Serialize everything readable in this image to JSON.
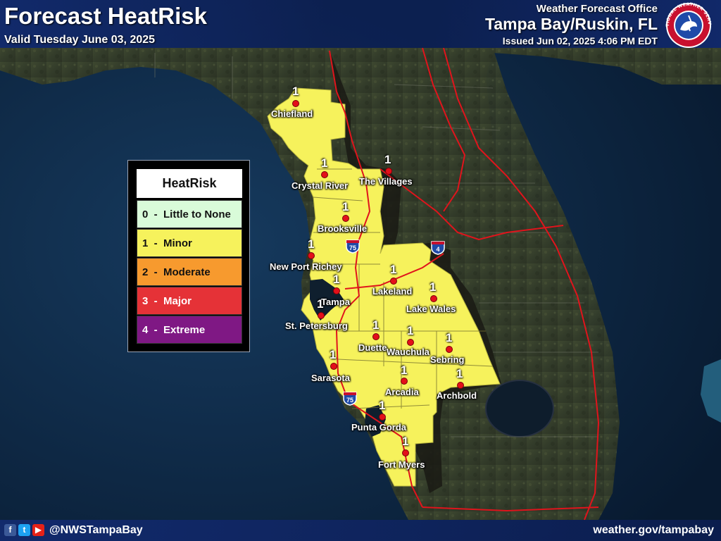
{
  "header": {
    "title": "Forecast HeatRisk",
    "valid": "Valid Tuesday June 03, 2025",
    "office_label": "Weather Forecast Office",
    "office_name": "Tampa Bay/Ruskin, FL",
    "issued": "Issued Jun 02, 2025 4:06 PM EDT",
    "logo_text": "NATIONAL WEATHER SERVICE"
  },
  "legend": {
    "title": "HeatRisk",
    "items": [
      {
        "level": "0",
        "label": "Little to None",
        "color": "#d9fbd9"
      },
      {
        "level": "1",
        "label": "Minor",
        "color": "#f6f25c"
      },
      {
        "level": "2",
        "label": "Moderate",
        "color": "#f79a2e"
      },
      {
        "level": "3",
        "label": "Major",
        "color": "#e53237"
      },
      {
        "level": "4",
        "label": "Extreme",
        "color": "#7f1884"
      }
    ]
  },
  "cities": [
    {
      "name": "Chiefland",
      "value": "1"
    },
    {
      "name": "Crystal River",
      "value": "1"
    },
    {
      "name": "The Villages",
      "value": "1"
    },
    {
      "name": "Brooksville",
      "value": "1"
    },
    {
      "name": "New Port Richey",
      "value": "1"
    },
    {
      "name": "Tampa",
      "value": "1"
    },
    {
      "name": "Lakeland",
      "value": "1"
    },
    {
      "name": "Lake Wales",
      "value": "1"
    },
    {
      "name": "St. Petersburg",
      "value": "1"
    },
    {
      "name": "Duette",
      "value": "1"
    },
    {
      "name": "Wauchula",
      "value": "1"
    },
    {
      "name": "Sebring",
      "value": "1"
    },
    {
      "name": "Sarasota",
      "value": "1"
    },
    {
      "name": "Arcadia",
      "value": "1"
    },
    {
      "name": "Archbold",
      "value": "1"
    },
    {
      "name": "Punta Gorda",
      "value": "1"
    },
    {
      "name": "Fort Myers",
      "value": "1"
    }
  ],
  "highways": [
    {
      "label": "75"
    },
    {
      "label": "4"
    },
    {
      "label": "75"
    }
  ],
  "footer": {
    "handle": "@NWSTampaBay",
    "site": "weather.gov/tampabay",
    "icons": [
      "facebook-icon",
      "twitter-icon",
      "youtube-icon"
    ]
  },
  "colors": {
    "ocean": "#0e2a47",
    "land": "#38402e",
    "risk_minor": "#f6f25c",
    "road": "#e0141c"
  }
}
